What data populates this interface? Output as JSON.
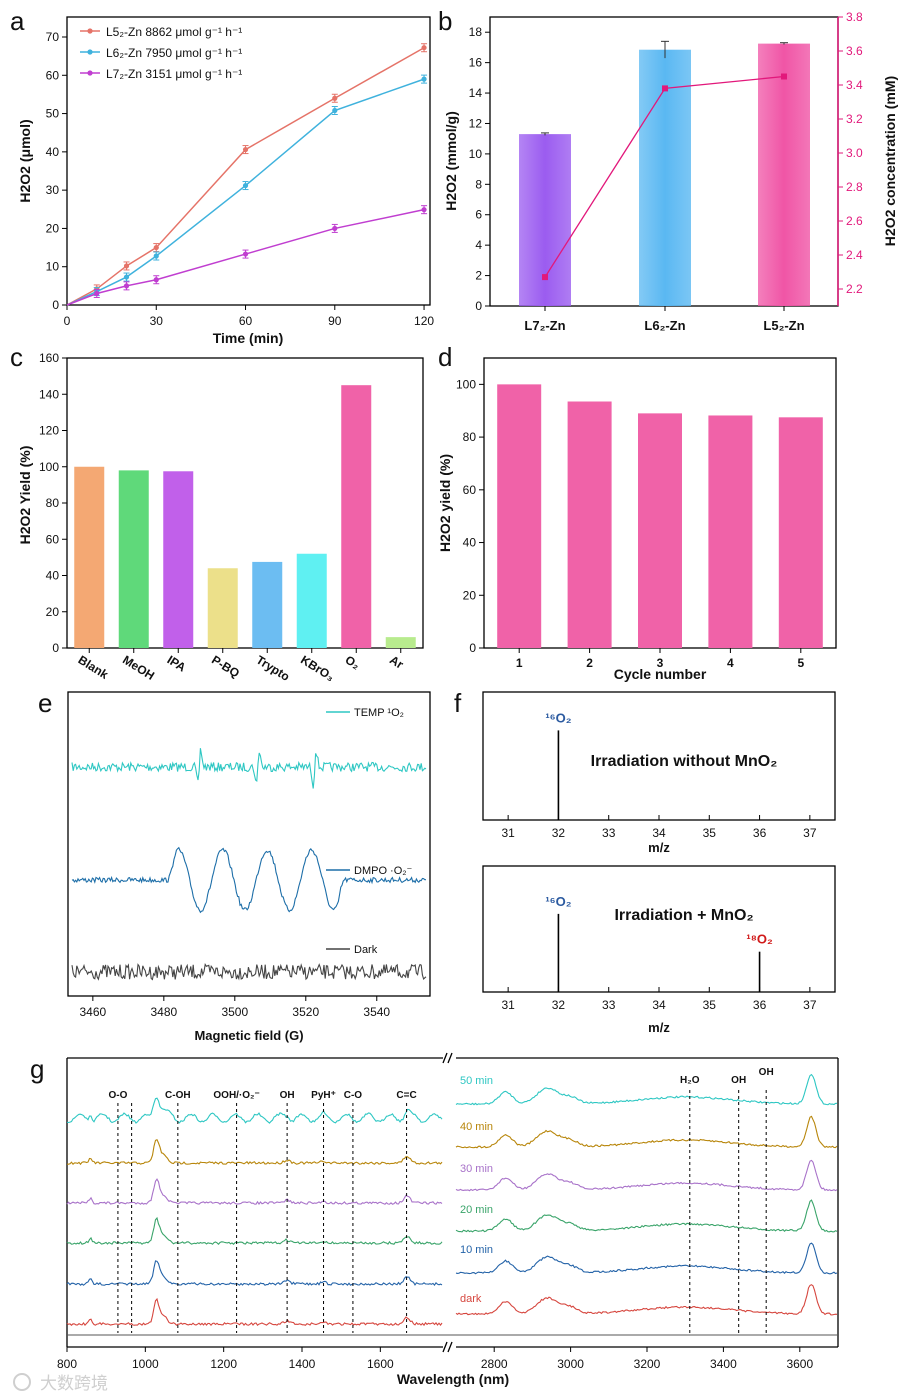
{
  "panel_letters": {
    "a": "a",
    "b": "b",
    "c": "c",
    "d": "d",
    "e": "e",
    "f": "f",
    "g": "g"
  },
  "watermark": "大数跨境",
  "chart_data": [
    {
      "id": "a",
      "type": "line",
      "xlabel": "Time (min)",
      "ylabel": "H2O2 (μmol)",
      "x": [
        0,
        10,
        20,
        30,
        60,
        90,
        120
      ],
      "xlim": [
        0,
        122
      ],
      "ylim": [
        0,
        70
      ],
      "xticks": [
        0,
        30,
        60,
        90,
        120
      ],
      "yticks": [
        0,
        10,
        20,
        30,
        40,
        50,
        60,
        70
      ],
      "series": [
        {
          "name": "L5₂-Zn 8862 μmol g⁻¹ h⁻¹",
          "color": "#e57368",
          "values": [
            0,
            4.2,
            10.2,
            15,
            40.6,
            54,
            67.2
          ]
        },
        {
          "name": "L6₂-Zn 7950 μmol g⁻¹ h⁻¹",
          "color": "#3fb2dd",
          "values": [
            0,
            3.5,
            7.3,
            12.8,
            31.2,
            50.8,
            59
          ]
        },
        {
          "name": "L7₂-Zn 3151 μmol g⁻¹ h⁻¹",
          "color": "#c03ed0",
          "values": [
            0,
            3,
            5,
            6.6,
            13.3,
            20,
            24.9
          ]
        }
      ]
    },
    {
      "id": "b",
      "type": "bar",
      "categories": [
        "L7₂-Zn",
        "L6₂-Zn",
        "L5₂-Zn"
      ],
      "values": [
        11.3,
        16.85,
        17.25
      ],
      "bar_colors": [
        "#9b5cf0",
        "#5ab8f2",
        "#f055a6"
      ],
      "ylabel": "H2O2 (mmol/g)",
      "ylim": [
        0,
        19
      ],
      "yticks": [
        0,
        2,
        4,
        6,
        8,
        10,
        12,
        14,
        16,
        18
      ],
      "line": {
        "name": "H2O2 concentration (mM)",
        "color": "#e2187b",
        "values": [
          2.27,
          3.38,
          3.45
        ]
      },
      "y2label": "H2O2 concentration (mM)",
      "y2lim": [
        2.1,
        3.8
      ],
      "y2ticks": [
        "2.2",
        "2.4",
        "2.6",
        "2.8",
        "3.0",
        "3.2",
        "3.4",
        "3.6",
        "3.8"
      ]
    },
    {
      "id": "c",
      "type": "bar",
      "categories": [
        "Blank",
        "MeOH",
        "IPA",
        "P-BQ",
        "Trypto",
        "KBrO₃",
        "O₂",
        "Ar"
      ],
      "values": [
        100,
        98,
        97.5,
        44,
        47.5,
        52,
        145,
        6
      ],
      "bar_colors": [
        "#f4a873",
        "#5fd97a",
        "#c160ea",
        "#ece08a",
        "#6cbdf2",
        "#5ff0f2",
        "#f062a8",
        "#b8eb8e"
      ],
      "ylabel": "H2O2 Yield (%)",
      "ylim": [
        0,
        160
      ],
      "yticks": [
        0,
        20,
        40,
        60,
        80,
        100,
        120,
        140,
        160
      ]
    },
    {
      "id": "d",
      "type": "bar",
      "categories": [
        "1",
        "2",
        "3",
        "4",
        "5"
      ],
      "values": [
        100,
        93.5,
        89,
        88.2,
        87.5
      ],
      "bar_colors": [
        "#f062a8",
        "#f062a8",
        "#f062a8",
        "#f062a8",
        "#f062a8"
      ],
      "xlabel": "Cycle number",
      "ylabel": "H2O2 yield (%)",
      "ylim": [
        0,
        110
      ],
      "yticks": [
        0,
        20,
        40,
        60,
        80,
        100
      ]
    },
    {
      "id": "e",
      "type": "line",
      "xlabel": "Magnetic field (G)",
      "xlim": [
        3453,
        3555
      ],
      "xticks": [
        3460,
        3480,
        3500,
        3520,
        3540
      ],
      "series": [
        {
          "name": "TEMP ¹O₂",
          "color": "#2ec7c3",
          "peaks_G": [
            3490,
            3506.5,
            3522.5
          ]
        },
        {
          "name": "DMPO ·O₂⁻",
          "color": "#1d6ea8",
          "peaks_G": [
            3488.5,
            3500,
            3516,
            3528
          ]
        },
        {
          "name": "Dark",
          "color": "#444444",
          "peaks_G": []
        }
      ]
    },
    {
      "id": "f",
      "type": "bar",
      "xlabel": "m/z",
      "xlim": [
        30.5,
        37.5
      ],
      "xticks": [
        31,
        32,
        33,
        34,
        35,
        36,
        37
      ],
      "panels": [
        {
          "title": "Irradiation without MnO₂",
          "peaks": [
            {
              "mz": 32,
              "label": "¹⁶O₂",
              "rel": 0.7,
              "color": "#2b5aa0"
            }
          ]
        },
        {
          "title": "Irradiation + MnO₂",
          "peaks": [
            {
              "mz": 32,
              "label": "¹⁶O₂",
              "rel": 0.62,
              "color": "#2b5aa0"
            },
            {
              "mz": 36,
              "label": "¹⁸O₂",
              "rel": 0.32,
              "color": "#d01919"
            }
          ]
        }
      ]
    },
    {
      "id": "g",
      "type": "line",
      "xlabel": "Wavelength (nm)",
      "left_xlim": [
        800,
        1760
      ],
      "left_xticks": [
        800,
        1000,
        1200,
        1400,
        1600
      ],
      "right_xlim": [
        2700,
        3700
      ],
      "right_xticks": [
        2800,
        3000,
        3200,
        3400,
        3600
      ],
      "series": [
        {
          "name": "50 min",
          "color": "#2ec7c3"
        },
        {
          "name": "40 min",
          "color": "#b8860b"
        },
        {
          "name": "30 min",
          "color": "#a872c9"
        },
        {
          "name": "20 min",
          "color": "#3aa46a"
        },
        {
          "name": "10 min",
          "color": "#2463a8"
        },
        {
          "name": "dark",
          "color": "#d6463e"
        }
      ],
      "band_labels_left": [
        {
          "label": "O-O",
          "x": 930
        },
        {
          "label": "C-OH",
          "x": 1083
        },
        {
          "label": "OOH/·O₂⁻",
          "x": 1233
        },
        {
          "label": "OH",
          "x": 1362
        },
        {
          "label": "PyH⁺",
          "x": 1455
        },
        {
          "label": "C-O",
          "x": 1530
        },
        {
          "label": "C=C",
          "x": 1667
        }
      ],
      "extra_lines_left": [
        965
      ],
      "band_labels_right": [
        {
          "label": "H₂O",
          "x": 3312
        },
        {
          "label": "OH",
          "x": 3440
        },
        {
          "label": "OH",
          "x": 3512
        }
      ]
    }
  ]
}
